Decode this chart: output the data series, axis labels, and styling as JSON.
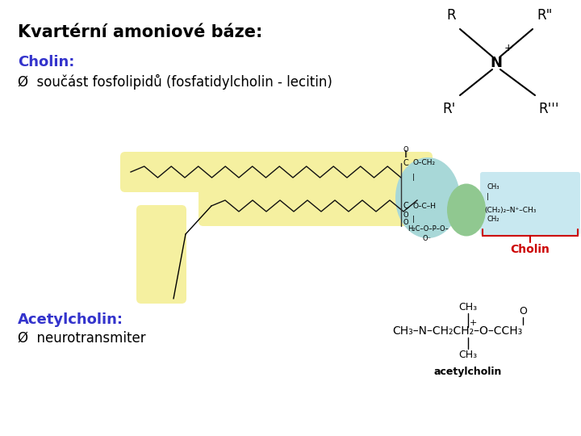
{
  "bg_color": "#ffffff",
  "title": "Kvartérní amoniové báze:",
  "title_fontsize": 15,
  "cholin_label": "Cholin:",
  "cholin_label_color": "#3333cc",
  "cholin_label_fontsize": 13,
  "bullet1_text": "Ø  součást fosfolipidů (fosfatidylcholin - lecitin)",
  "bullet1_fontsize": 12,
  "acetylcholin_label": "Acetylcholin:",
  "acetylcholin_label_color": "#3333cc",
  "acetylcholin_label_fontsize": 13,
  "bullet2_text": "Ø  neurotransmiter",
  "bullet2_fontsize": 12,
  "yellow": "#f5f0a0",
  "teal": "#a8d8d8",
  "green": "#90c890",
  "lightblue": "#c8e8f0",
  "red": "#cc0000",
  "darkgray": "#222222"
}
